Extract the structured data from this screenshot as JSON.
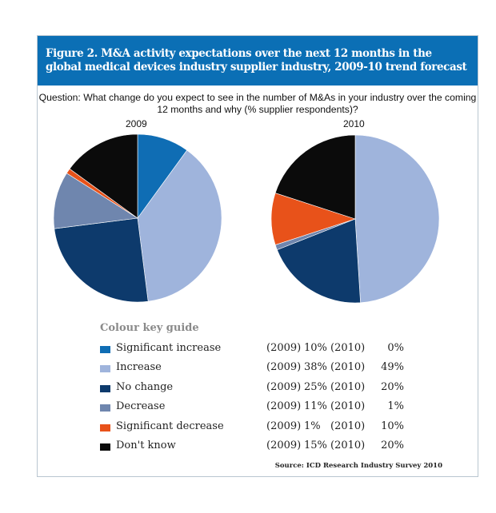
{
  "chart_data": [
    {
      "type": "pie",
      "title": "2009",
      "categories": [
        "Significant increase",
        "Increase",
        "No change",
        "Decrease",
        "Significant decrease",
        "Don't know"
      ],
      "values": [
        10,
        38,
        25,
        11,
        1,
        15
      ]
    },
    {
      "type": "pie",
      "title": "2010",
      "categories": [
        "Significant increase",
        "Increase",
        "No change",
        "Decrease",
        "Significant decrease",
        "Don't know"
      ],
      "values": [
        0,
        49,
        20,
        1,
        10,
        20
      ]
    }
  ],
  "header": {
    "title": "Figure 2. M&A activity expectations over the next 12 months in the global medical devices industry supplier industry, 2009-10 trend forecast"
  },
  "question": "Question: What change do you expect to see in the number of M&As in your industry over the coming 12 months and why (% supplier respondents)?",
  "years": [
    "2009",
    "2010"
  ],
  "key": {
    "title": "Colour key guide",
    "rows": [
      {
        "label": "Significant increase",
        "color": "#0f6db4",
        "y1": "(2009)",
        "v1": "10%",
        "y2": "(2010)",
        "v2": "0%"
      },
      {
        "label": "Increase",
        "color": "#9fb4dc",
        "y1": "(2009)",
        "v1": "38%",
        "y2": "(2010)",
        "v2": "49%"
      },
      {
        "label": "No change",
        "color": "#0d3a6c",
        "y1": "(2009)",
        "v1": "25%",
        "y2": "(2010)",
        "v2": "20%"
      },
      {
        "label": "Decrease",
        "color": "#6f86ae",
        "y1": "(2009)",
        "v1": "11%",
        "y2": "(2010)",
        "v2": "1%"
      },
      {
        "label": "Significant decrease",
        "color": "#e8521a",
        "y1": "(2009)",
        "v1": "1%",
        "y2": "(2010)",
        "v2": "10%"
      },
      {
        "label": "Don't know",
        "color": "#0b0b0b",
        "y1": "(2009)",
        "v1": "15%",
        "y2": "(2010)",
        "v2": "20%"
      }
    ]
  },
  "source": "Source: ICD Research Industry Survey 2010"
}
